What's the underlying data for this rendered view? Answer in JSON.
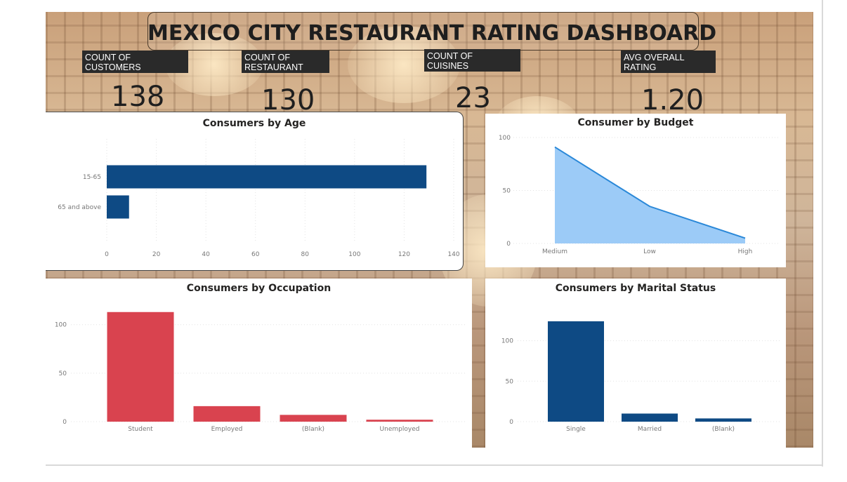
{
  "dashboard": {
    "title": "MEXICO CITY RESTAURANT RATING DASHBOARD",
    "kpis": [
      {
        "label": "COUNT OF\nCUSTOMERS",
        "value": "138"
      },
      {
        "label": "COUNT OF\nRESTAURANT",
        "value": "130"
      },
      {
        "label": "COUNT OF\nCUISINES",
        "value": "23"
      },
      {
        "label": "AVG OVERALL\nRATING",
        "value": "1.20"
      }
    ]
  },
  "colors": {
    "navy": "#0e4a84",
    "red": "#d9434f",
    "area_fill": "#9ccbf7",
    "area_line": "#2a88d8",
    "grid": "#e3e3e3"
  },
  "chart_data": [
    {
      "type": "bar",
      "orientation": "horizontal",
      "title": "Consumers by Age",
      "categories": [
        "15-65",
        "65 and above"
      ],
      "values": [
        129,
        9
      ],
      "xlim": [
        0,
        140
      ],
      "ticks": [
        0,
        20,
        40,
        60,
        80,
        100,
        120,
        140
      ],
      "grid": true
    },
    {
      "type": "area",
      "title": "Consumer by Budget",
      "categories": [
        "Medium",
        "Low",
        "High"
      ],
      "values": [
        91,
        35,
        5
      ],
      "ylim": [
        0,
        100
      ],
      "ticks": [
        0,
        50,
        100
      ],
      "grid": true
    },
    {
      "type": "bar",
      "title": "Consumers by Occupation",
      "categories": [
        "Student",
        "Employed",
        "(Blank)",
        "Unemployed"
      ],
      "values": [
        113,
        16,
        7,
        2
      ],
      "ylim": [
        0,
        115
      ],
      "ticks": [
        0,
        50,
        100
      ],
      "grid": true
    },
    {
      "type": "bar",
      "title": "Consumers by Marital Status",
      "categories": [
        "Single",
        "Married",
        "(Blank)"
      ],
      "values": [
        124,
        10,
        4
      ],
      "ylim": [
        0,
        130
      ],
      "ticks": [
        0,
        50,
        100
      ],
      "grid": true
    }
  ]
}
